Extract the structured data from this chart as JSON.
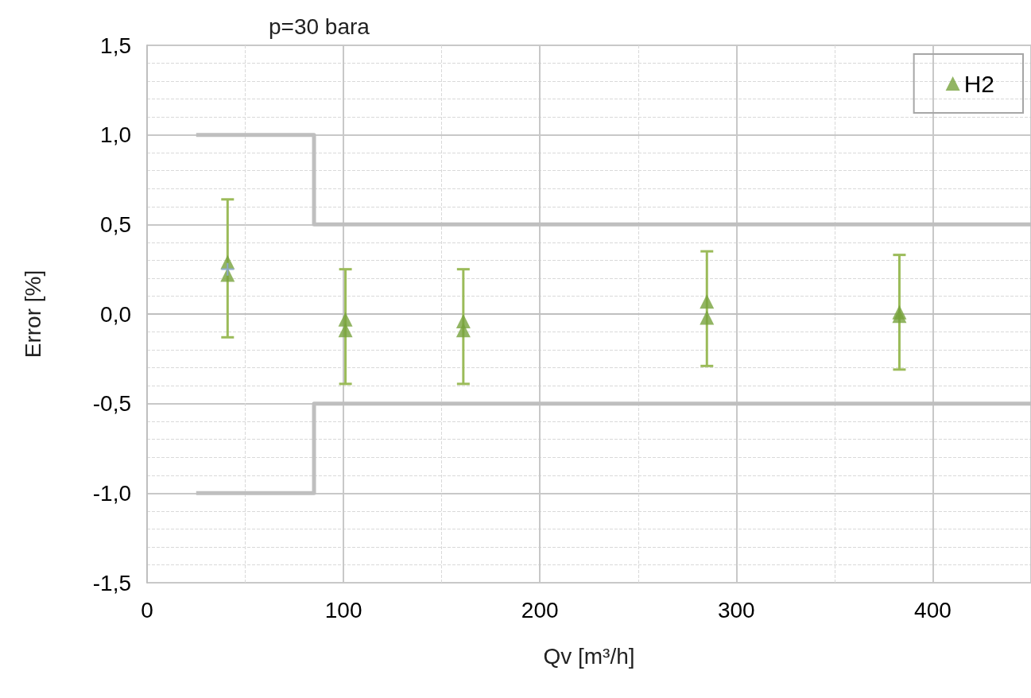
{
  "chart_data": {
    "type": "scatter",
    "title": "p=30 bara",
    "xlabel": "Qv [m³/h]",
    "ylabel": "Error [%]",
    "x": [
      41,
      41,
      101,
      101,
      161,
      161,
      285,
      285,
      383,
      383
    ],
    "series": [
      {
        "name": "H2",
        "color": "#77a33c",
        "marker": "triangle",
        "values": [
          0.29,
          0.22,
          -0.03,
          -0.09,
          -0.04,
          -0.09,
          0.07,
          -0.02,
          0.01,
          -0.01
        ],
        "errors": [
          [
            -0.13,
            0.64
          ],
          null,
          [
            -0.39,
            0.25
          ],
          null,
          [
            -0.39,
            0.25
          ],
          null,
          [
            -0.29,
            0.35
          ],
          null,
          [
            -0.31,
            0.33
          ],
          null
        ]
      },
      {
        "color": "#8faadc",
        "marker": "cross",
        "x": [
          41
        ],
        "values": [
          0.25
        ]
      },
      {
        "type": "step",
        "color": "#bfbfbf",
        "marker": "none",
        "x": [
          25,
          85,
          450
        ],
        "values": [
          1.0,
          0.5,
          0.5
        ]
      },
      {
        "type": "step",
        "color": "#bfbfbf",
        "marker": "none",
        "x": [
          25,
          85,
          450
        ],
        "values": [
          -1.0,
          -0.5,
          -0.5
        ]
      }
    ],
    "xlim": [
      0,
      450
    ],
    "xticks": [
      0,
      100,
      200,
      300,
      400
    ],
    "ylim": [
      -1.5,
      1.5
    ],
    "yticks": [
      {
        "value": -1.5,
        "label": "-1,5"
      },
      {
        "value": -1.0,
        "label": "-1,0"
      },
      {
        "value": -0.5,
        "label": "-0,5"
      },
      {
        "value": 0,
        "label": "0,0"
      },
      {
        "value": 0.5,
        "label": "0,5"
      },
      {
        "value": 1.0,
        "label": "1,0"
      },
      {
        "value": 1.5,
        "label": "1,5"
      }
    ],
    "grid": true,
    "legend": "top right"
  }
}
